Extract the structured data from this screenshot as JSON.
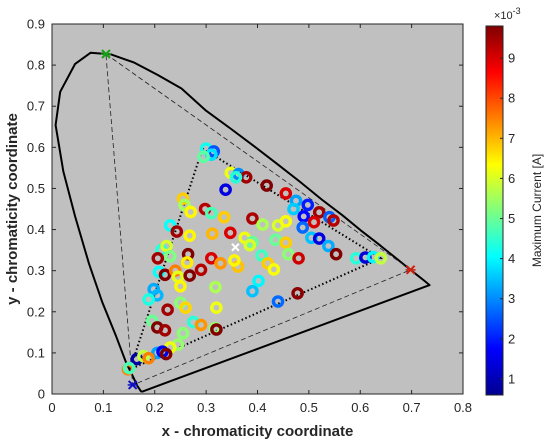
{
  "chart_data": {
    "type": "scatter",
    "title": "",
    "xlabel": "x - chromaticity coordinate",
    "ylabel": "y - chromaticity coordinate",
    "xlim": [
      0,
      0.8
    ],
    "ylim": [
      0,
      0.9
    ],
    "xticks": [
      "0",
      "0.1",
      "0.2",
      "0.3",
      "0.4",
      "0.5",
      "0.6",
      "0.7",
      "0.8"
    ],
    "yticks": [
      "0",
      "0.1",
      "0.2",
      "0.3",
      "0.4",
      "0.5",
      "0.6",
      "0.7",
      "0.8",
      "0.9"
    ],
    "grid": false,
    "background_color": "#c0c0c0",
    "colorbar": {
      "label": "Maximum Current [A]",
      "multiplier_base": "×10",
      "multiplier_exp": "-3",
      "range": [
        0.6,
        9.8
      ],
      "ticks": [
        "1",
        "2",
        "3",
        "4",
        "5",
        "6",
        "7",
        "8",
        "9"
      ],
      "colormap": "jet"
    },
    "spectral_locus": [
      [
        0.174,
        0.005
      ],
      [
        0.171,
        0.0104
      ],
      [
        0.166,
        0.02
      ],
      [
        0.158,
        0.041
      ],
      [
        0.144,
        0.077
      ],
      [
        0.124,
        0.143
      ],
      [
        0.098,
        0.223
      ],
      [
        0.072,
        0.317
      ],
      [
        0.045,
        0.432
      ],
      [
        0.022,
        0.542
      ],
      [
        0.007,
        0.654
      ],
      [
        0.016,
        0.735
      ],
      [
        0.045,
        0.803
      ],
      [
        0.075,
        0.83
      ],
      [
        0.115,
        0.826
      ],
      [
        0.16,
        0.806
      ],
      [
        0.206,
        0.776
      ],
      [
        0.252,
        0.743
      ],
      [
        0.3,
        0.689
      ],
      [
        0.346,
        0.647
      ],
      [
        0.391,
        0.605
      ],
      [
        0.437,
        0.561
      ],
      [
        0.483,
        0.516
      ],
      [
        0.525,
        0.473
      ],
      [
        0.565,
        0.435
      ],
      [
        0.601,
        0.398
      ],
      [
        0.633,
        0.367
      ],
      [
        0.661,
        0.339
      ],
      [
        0.69,
        0.31
      ],
      [
        0.711,
        0.289
      ],
      [
        0.725,
        0.275
      ],
      [
        0.735,
        0.265
      ],
      [
        0.174,
        0.005
      ]
    ],
    "gamut_dashed": [
      [
        0.105,
        0.827
      ],
      [
        0.698,
        0.302
      ],
      [
        0.157,
        0.022
      ],
      [
        0.105,
        0.827
      ]
    ],
    "gamut_dotted": [
      [
        0.293,
        0.597
      ],
      [
        0.64,
        0.33
      ],
      [
        0.152,
        0.06
      ],
      [
        0.293,
        0.597
      ]
    ],
    "primary_markers": [
      {
        "x": 0.105,
        "y": 0.827,
        "color": "#18a018"
      },
      {
        "x": 0.698,
        "y": 0.302,
        "color": "#d02010"
      },
      {
        "x": 0.157,
        "y": 0.022,
        "color": "#1010c8"
      }
    ],
    "white_point": {
      "x": 0.357,
      "y": 0.357,
      "color": "#ffffff"
    },
    "points": [
      {
        "x": 0.3,
        "y": 0.597,
        "c": 4.2
      },
      {
        "x": 0.315,
        "y": 0.59,
        "c": 2.5
      },
      {
        "x": 0.31,
        "y": 0.582,
        "c": 3.8
      },
      {
        "x": 0.295,
        "y": 0.577,
        "c": 4.9
      },
      {
        "x": 0.348,
        "y": 0.538,
        "c": 6.2
      },
      {
        "x": 0.363,
        "y": 0.535,
        "c": 3.0
      },
      {
        "x": 0.378,
        "y": 0.527,
        "c": 9.5
      },
      {
        "x": 0.358,
        "y": 0.527,
        "c": 4.4
      },
      {
        "x": 0.338,
        "y": 0.497,
        "c": 1.5
      },
      {
        "x": 0.418,
        "y": 0.507,
        "c": 9.8
      },
      {
        "x": 0.455,
        "y": 0.488,
        "c": 9.0
      },
      {
        "x": 0.475,
        "y": 0.47,
        "c": 3.2
      },
      {
        "x": 0.498,
        "y": 0.46,
        "c": 2.0
      },
      {
        "x": 0.52,
        "y": 0.442,
        "c": 9.5
      },
      {
        "x": 0.54,
        "y": 0.43,
        "c": 2.6
      },
      {
        "x": 0.548,
        "y": 0.422,
        "c": 9.3
      },
      {
        "x": 0.47,
        "y": 0.45,
        "c": 3.6
      },
      {
        "x": 0.49,
        "y": 0.432,
        "c": 1.8
      },
      {
        "x": 0.51,
        "y": 0.418,
        "c": 9.0
      },
      {
        "x": 0.255,
        "y": 0.475,
        "c": 6.8
      },
      {
        "x": 0.258,
        "y": 0.46,
        "c": 5.5
      },
      {
        "x": 0.27,
        "y": 0.443,
        "c": 6.4
      },
      {
        "x": 0.298,
        "y": 0.45,
        "c": 9.3
      },
      {
        "x": 0.31,
        "y": 0.44,
        "c": 4.7
      },
      {
        "x": 0.335,
        "y": 0.43,
        "c": 6.8
      },
      {
        "x": 0.39,
        "y": 0.427,
        "c": 9.4
      },
      {
        "x": 0.41,
        "y": 0.412,
        "c": 5.6
      },
      {
        "x": 0.44,
        "y": 0.41,
        "c": 6.0
      },
      {
        "x": 0.455,
        "y": 0.42,
        "c": 6.3
      },
      {
        "x": 0.488,
        "y": 0.405,
        "c": 2.7
      },
      {
        "x": 0.505,
        "y": 0.38,
        "c": 3.5
      },
      {
        "x": 0.52,
        "y": 0.378,
        "c": 1.5
      },
      {
        "x": 0.538,
        "y": 0.36,
        "c": 3.3
      },
      {
        "x": 0.553,
        "y": 0.34,
        "c": 9.8
      },
      {
        "x": 0.592,
        "y": 0.33,
        "c": 4.4
      },
      {
        "x": 0.61,
        "y": 0.332,
        "c": 1.4
      },
      {
        "x": 0.625,
        "y": 0.333,
        "c": 4.0
      },
      {
        "x": 0.64,
        "y": 0.33,
        "c": 5.8
      },
      {
        "x": 0.23,
        "y": 0.41,
        "c": 4.1
      },
      {
        "x": 0.243,
        "y": 0.395,
        "c": 9.5
      },
      {
        "x": 0.268,
        "y": 0.385,
        "c": 6.4
      },
      {
        "x": 0.312,
        "y": 0.39,
        "c": 7.0
      },
      {
        "x": 0.347,
        "y": 0.392,
        "c": 9.0
      },
      {
        "x": 0.375,
        "y": 0.38,
        "c": 6.2
      },
      {
        "x": 0.39,
        "y": 0.37,
        "c": 5.0
      },
      {
        "x": 0.435,
        "y": 0.375,
        "c": 5.0
      },
      {
        "x": 0.455,
        "y": 0.368,
        "c": 6.8
      },
      {
        "x": 0.46,
        "y": 0.34,
        "c": 5.3
      },
      {
        "x": 0.48,
        "y": 0.33,
        "c": 9.1
      },
      {
        "x": 0.213,
        "y": 0.35,
        "c": 4.4
      },
      {
        "x": 0.223,
        "y": 0.36,
        "c": 6.0
      },
      {
        "x": 0.23,
        "y": 0.335,
        "c": 5.2
      },
      {
        "x": 0.206,
        "y": 0.33,
        "c": 9.5
      },
      {
        "x": 0.265,
        "y": 0.34,
        "c": 9.8
      },
      {
        "x": 0.263,
        "y": 0.32,
        "c": 6.5
      },
      {
        "x": 0.31,
        "y": 0.33,
        "c": 9.0
      },
      {
        "x": 0.328,
        "y": 0.318,
        "c": 7.3
      },
      {
        "x": 0.362,
        "y": 0.31,
        "c": 6.9
      },
      {
        "x": 0.385,
        "y": 0.362,
        "c": 6.0
      },
      {
        "x": 0.408,
        "y": 0.337,
        "c": 4.6
      },
      {
        "x": 0.42,
        "y": 0.318,
        "c": 6.8
      },
      {
        "x": 0.432,
        "y": 0.303,
        "c": 6.3
      },
      {
        "x": 0.208,
        "y": 0.297,
        "c": 4.1
      },
      {
        "x": 0.22,
        "y": 0.29,
        "c": 9.8
      },
      {
        "x": 0.24,
        "y": 0.3,
        "c": 7.5
      },
      {
        "x": 0.245,
        "y": 0.285,
        "c": 6.1
      },
      {
        "x": 0.268,
        "y": 0.288,
        "c": 9.8
      },
      {
        "x": 0.29,
        "y": 0.302,
        "c": 9.3
      },
      {
        "x": 0.355,
        "y": 0.325,
        "c": 6.4
      },
      {
        "x": 0.198,
        "y": 0.255,
        "c": 3.3
      },
      {
        "x": 0.205,
        "y": 0.24,
        "c": 3.4
      },
      {
        "x": 0.188,
        "y": 0.23,
        "c": 4.3
      },
      {
        "x": 0.25,
        "y": 0.262,
        "c": 6.4
      },
      {
        "x": 0.318,
        "y": 0.26,
        "c": 5.6
      },
      {
        "x": 0.32,
        "y": 0.21,
        "c": 6.2
      },
      {
        "x": 0.402,
        "y": 0.275,
        "c": 4.0
      },
      {
        "x": 0.39,
        "y": 0.25,
        "c": 3.5
      },
      {
        "x": 0.44,
        "y": 0.225,
        "c": 2.7
      },
      {
        "x": 0.478,
        "y": 0.245,
        "c": 9.7
      },
      {
        "x": 0.225,
        "y": 0.205,
        "c": 9.5
      },
      {
        "x": 0.25,
        "y": 0.222,
        "c": 5.3
      },
      {
        "x": 0.26,
        "y": 0.21,
        "c": 6.7
      },
      {
        "x": 0.275,
        "y": 0.175,
        "c": 4.4
      },
      {
        "x": 0.29,
        "y": 0.168,
        "c": 7.3
      },
      {
        "x": 0.317,
        "y": 0.16,
        "c": 5.4
      },
      {
        "x": 0.32,
        "y": 0.157,
        "c": 9.8
      },
      {
        "x": 0.195,
        "y": 0.178,
        "c": 5.0
      },
      {
        "x": 0.205,
        "y": 0.162,
        "c": 9.8
      },
      {
        "x": 0.22,
        "y": 0.155,
        "c": 9.5
      },
      {
        "x": 0.255,
        "y": 0.148,
        "c": 5.3
      },
      {
        "x": 0.245,
        "y": 0.12,
        "c": 5.4
      },
      {
        "x": 0.23,
        "y": 0.113,
        "c": 6.2
      },
      {
        "x": 0.205,
        "y": 0.1,
        "c": 3.2
      },
      {
        "x": 0.215,
        "y": 0.103,
        "c": 1.6
      },
      {
        "x": 0.222,
        "y": 0.097,
        "c": 9.8
      },
      {
        "x": 0.165,
        "y": 0.085,
        "c": 0.9
      },
      {
        "x": 0.178,
        "y": 0.092,
        "c": 5.8
      },
      {
        "x": 0.188,
        "y": 0.087,
        "c": 7.5
      },
      {
        "x": 0.148,
        "y": 0.06,
        "c": 7.5
      },
      {
        "x": 0.15,
        "y": 0.063,
        "c": 4.7
      }
    ]
  }
}
